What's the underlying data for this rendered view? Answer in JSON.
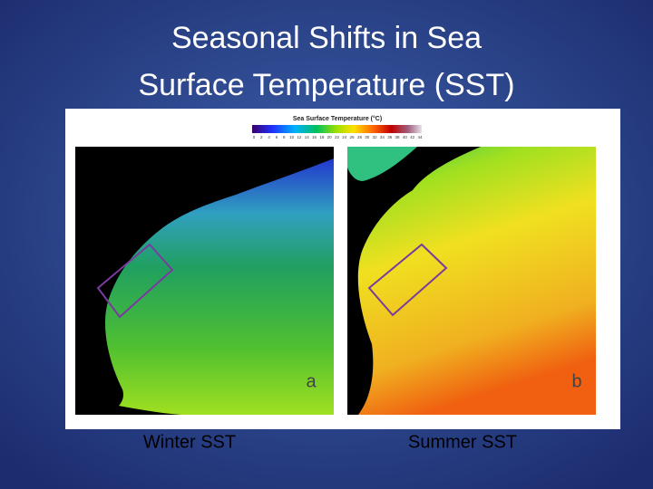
{
  "slide": {
    "title": "Seasonal Shifts in Sea Surface Temperature (SST)",
    "figure": {
      "colorbar_title": "Sea Surface Temperature (°C)",
      "colorbar_ticks": [
        0,
        2,
        4,
        6,
        8,
        10,
        12,
        14,
        16,
        18,
        20,
        22,
        24,
        26,
        28,
        30,
        32,
        34,
        36,
        38,
        40,
        42,
        44
      ],
      "panels": [
        {
          "label": "a"
        },
        {
          "label": "b"
        }
      ]
    },
    "captions": [
      "Winter SST",
      "Summer SST"
    ]
  }
}
